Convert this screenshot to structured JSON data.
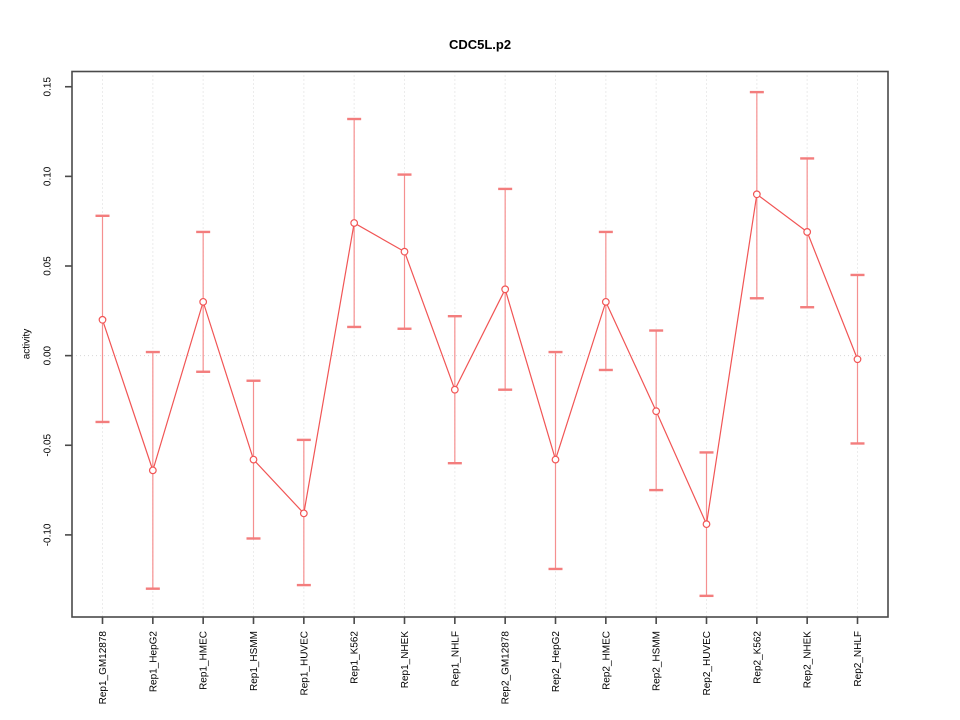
{
  "chart_data": {
    "type": "line",
    "title": "CDC5L.p2",
    "ylabel": "activity",
    "xlabel": "",
    "categories": [
      "Rep1_GM12878",
      "Rep1_HepG2",
      "Rep1_HMEC",
      "Rep1_HSMM",
      "Rep1_HUVEC",
      "Rep1_K562",
      "Rep1_NHEK",
      "Rep1_NHLF",
      "Rep2_GM12878",
      "Rep2_HepG2",
      "Rep2_HMEC",
      "Rep2_HSMM",
      "Rep2_HUVEC",
      "Rep2_K562",
      "Rep2_NHEK",
      "Rep2_NHLF"
    ],
    "series": [
      {
        "name": "activity",
        "values": [
          0.02,
          -0.064,
          0.03,
          -0.058,
          -0.088,
          0.074,
          0.058,
          -0.019,
          0.037,
          -0.058,
          0.03,
          -0.031,
          -0.094,
          0.09,
          0.069,
          -0.002
        ],
        "lower": [
          -0.037,
          -0.13,
          -0.009,
          -0.102,
          -0.128,
          0.016,
          0.015,
          -0.06,
          -0.019,
          -0.119,
          -0.008,
          -0.075,
          -0.134,
          0.032,
          0.027,
          -0.049
        ],
        "upper": [
          0.078,
          0.002,
          0.069,
          -0.014,
          -0.047,
          0.132,
          0.101,
          0.022,
          0.093,
          0.002,
          0.069,
          0.014,
          -0.054,
          0.147,
          0.11,
          0.045
        ]
      }
    ],
    "y_ticks": [
      0.15,
      0.1,
      0.05,
      0.0,
      -0.05,
      -0.1
    ],
    "y_tick_labels": [
      "0.15",
      "0.10",
      "0.05",
      "0.00",
      "-0.05",
      "-0.10"
    ],
    "ylim": [
      -0.1458,
      0.1585
    ],
    "grid": {
      "vertical_dotted_per_category": true,
      "horizontal_dotted_at_zero": true,
      "legend": "none"
    },
    "colors": {
      "line": "#f15555",
      "marker": "#f15555",
      "error_bar_stem": "#f59090",
      "error_bar_cap": "#f37d7d",
      "grid": "#d8d8d8",
      "frame": "#4a4a4a",
      "text": "#000000"
    }
  }
}
